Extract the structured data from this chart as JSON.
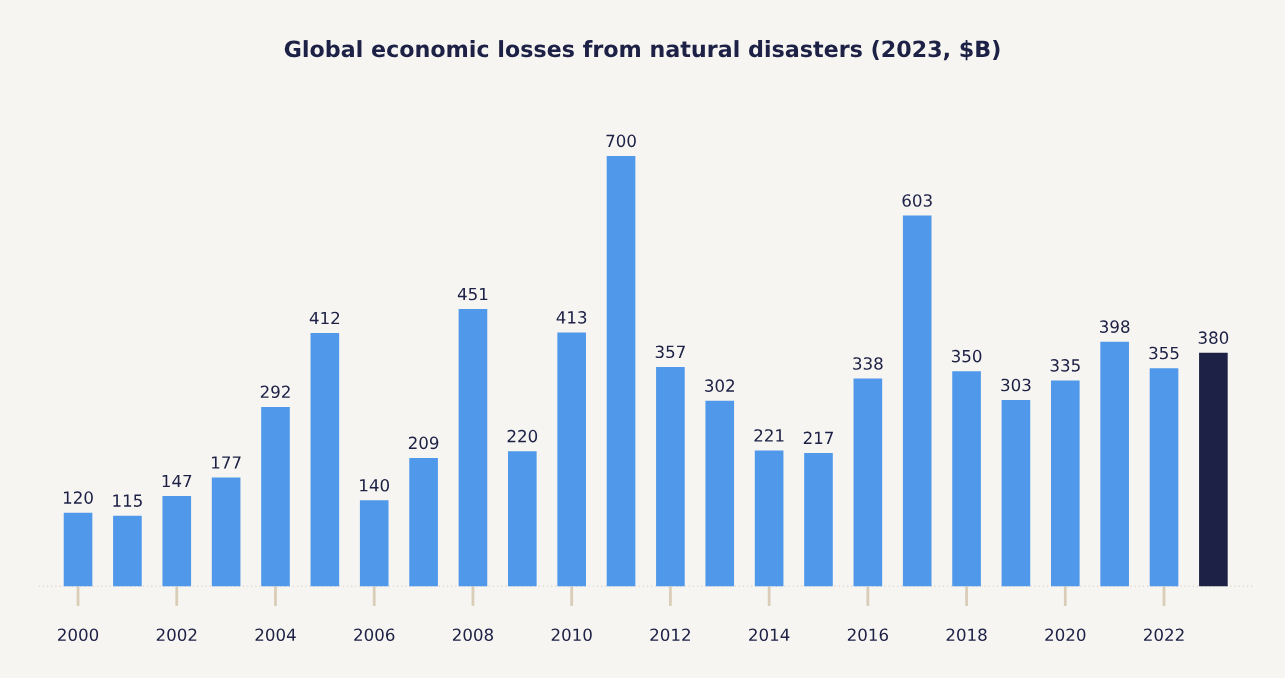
{
  "chart_data": {
    "type": "bar",
    "title": "Global economic losses from natural disasters (2023, $B)",
    "categories": [
      "2000",
      null,
      "2002",
      null,
      "2004",
      null,
      "2006",
      null,
      "2008",
      null,
      "2010",
      null,
      "2012",
      null,
      "2014",
      null,
      "2016",
      null,
      "2018",
      null,
      "2020",
      null,
      "2022",
      null
    ],
    "values": [
      120,
      115,
      147,
      177,
      292,
      412,
      140,
      209,
      451,
      220,
      413,
      700,
      357,
      302,
      221,
      217,
      338,
      603,
      350,
      303,
      335,
      398,
      355,
      380
    ],
    "colors": [
      "#4f98ea",
      "#4f98ea",
      "#4f98ea",
      "#4f98ea",
      "#4f98ea",
      "#4f98ea",
      "#4f98ea",
      "#4f98ea",
      "#4f98ea",
      "#4f98ea",
      "#4f98ea",
      "#4f98ea",
      "#4f98ea",
      "#4f98ea",
      "#4f98ea",
      "#4f98ea",
      "#4f98ea",
      "#4f98ea",
      "#4f98ea",
      "#4f98ea",
      "#4f98ea",
      "#4f98ea",
      "#4f98ea",
      "#1c2145"
    ],
    "data_labels": true,
    "grid": false,
    "legend": false
  }
}
